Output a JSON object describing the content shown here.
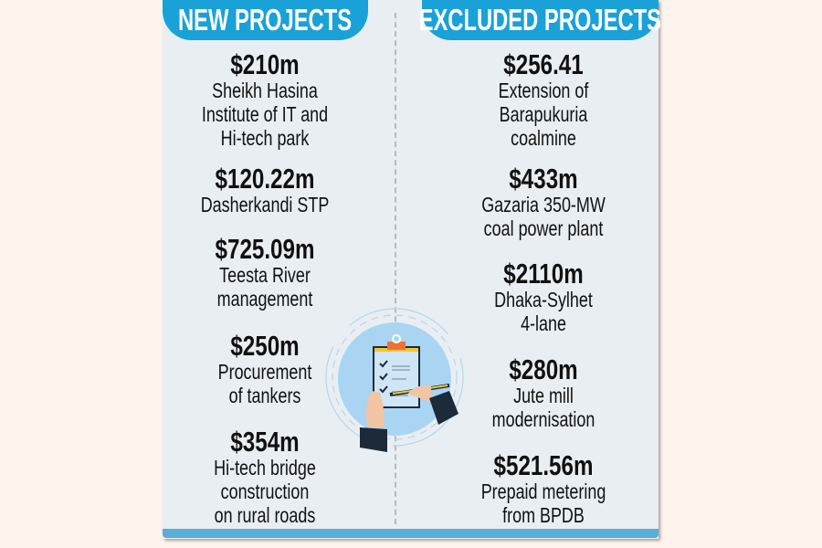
{
  "header": {
    "new_title": "NEW PROJECTS",
    "excluded_title": "EXCLUDED PROJECTS"
  },
  "new_projects": [
    {
      "amount": "$210m",
      "lines": [
        "Sheikh Hasina",
        "Institute of IT and",
        "Hi-tech park"
      ]
    },
    {
      "amount": "$120.22m",
      "lines": [
        "Dasherkandi STP"
      ]
    },
    {
      "amount": "$725.09m",
      "lines": [
        "Teesta River",
        "management"
      ]
    },
    {
      "amount": "$250m",
      "lines": [
        "Procurement",
        "of tankers"
      ]
    },
    {
      "amount": "$354m",
      "lines": [
        "Hi-tech bridge",
        "construction",
        "on rural roads"
      ]
    }
  ],
  "excluded_projects": [
    {
      "amount": "$256.41",
      "lines": [
        "Extension of",
        "Barapukuria",
        "coalmine"
      ]
    },
    {
      "amount": "$433m",
      "lines": [
        "Gazaria 350-MW",
        "coal power plant"
      ]
    },
    {
      "amount": "$2110m",
      "lines": [
        "Dhaka-Sylhet",
        "4-lane"
      ]
    },
    {
      "amount": "$280m",
      "lines": [
        "Jute mill",
        "modernisation"
      ]
    },
    {
      "amount": "$521.56m",
      "lines": [
        "Prepaid metering",
        "from BPDB"
      ]
    }
  ],
  "illustration_icon": "clipboard-checklist-icon",
  "colors": {
    "header_blue": "#1aa1d8",
    "card_bg": "#e9eef3",
    "bottom_bar": "#5aadd5",
    "page_bg": "#fdf4ec"
  }
}
